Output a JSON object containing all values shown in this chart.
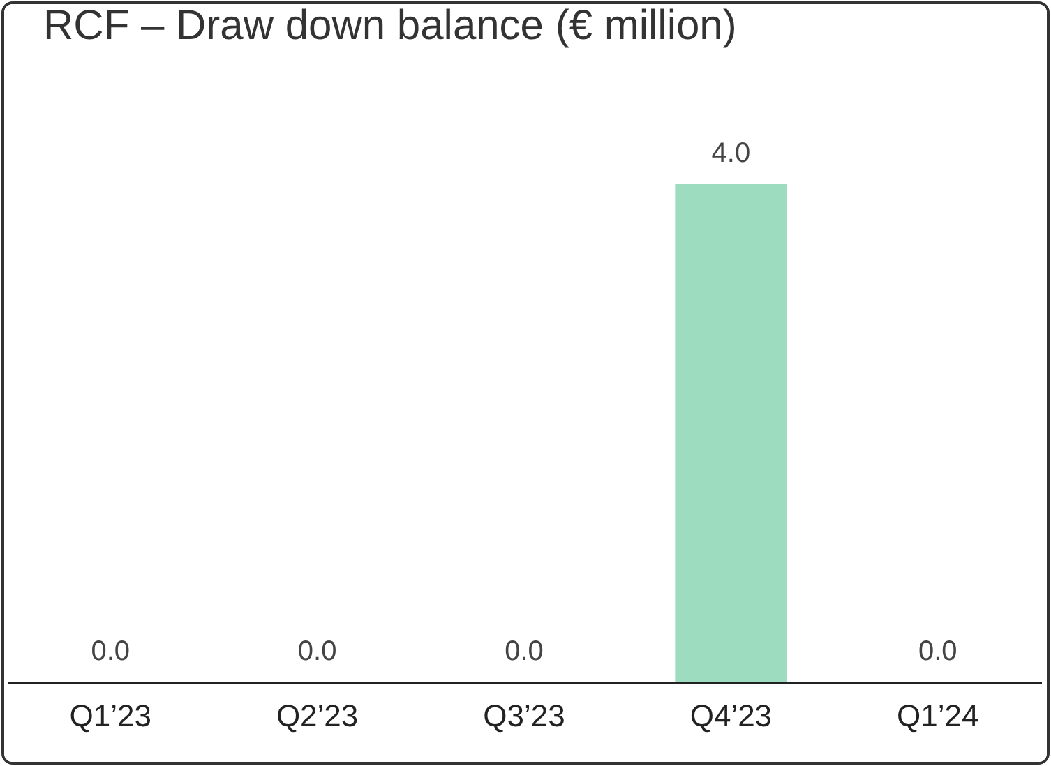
{
  "chart_data": {
    "type": "bar",
    "title": "RCF – Draw down balance (€ million)",
    "categories": [
      "Q1’23",
      "Q2’23",
      "Q3’23",
      "Q4’23",
      "Q1’24"
    ],
    "values": [
      0,
      0,
      0,
      4,
      0
    ],
    "value_labels": [
      "0.0",
      "0.0",
      "0.0",
      "4.0",
      "0.0"
    ],
    "color": "#9ddcbf"
  }
}
